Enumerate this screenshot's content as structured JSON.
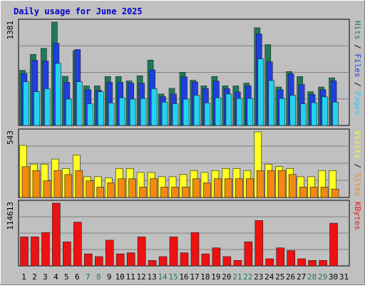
{
  "title": "Daily usage for June 2025",
  "colors": {
    "hits": "#1f7a5a",
    "files": "#1f3fe0",
    "pages": "#22d3ee",
    "visits": "#ffff22",
    "sites": "#f08a10",
    "kbytes": "#ee1111",
    "background": "#c0c0c0",
    "title": "#0000cc"
  },
  "chart_data": [
    {
      "type": "bar",
      "title": "Daily usage for June 2025",
      "categories": [
        "1",
        "2",
        "3",
        "4",
        "5",
        "6",
        "7",
        "8",
        "9",
        "10",
        "11",
        "12",
        "13",
        "14",
        "15",
        "16",
        "17",
        "18",
        "19",
        "20",
        "21",
        "22",
        "23",
        "24",
        "25",
        "26",
        "27",
        "28",
        "29",
        "30",
        "31"
      ],
      "weekend_days": [
        "7",
        "8",
        "14",
        "15",
        "21",
        "22",
        "28",
        "29"
      ],
      "ylabel_max": "1381",
      "ylim": [
        0,
        1381
      ],
      "legend": [
        "Pages",
        "Files",
        "Hits"
      ],
      "legend_placement": "right",
      "series": [
        {
          "name": "Hits",
          "values": [
            736,
            950,
            1030,
            1381,
            656,
            1000,
            529,
            529,
            654,
            654,
            595,
            663,
            874,
            420,
            497,
            710,
            603,
            529,
            654,
            529,
            529,
            565,
            1305,
            1080,
            514,
            720,
            654,
            451,
            514,
            637,
            0
          ]
        },
        {
          "name": "Files",
          "values": [
            694,
            870,
            862,
            1100,
            576,
            1015,
            478,
            469,
            576,
            576,
            566,
            566,
            743,
            383,
            420,
            650,
            579,
            491,
            593,
            491,
            449,
            529,
            1222,
            851,
            478,
            690,
            546,
            414,
            478,
            596,
            0
          ]
        },
        {
          "name": "Pages",
          "values": [
            584,
            451,
            491,
            830,
            352,
            584,
            290,
            451,
            301,
            369,
            352,
            361,
            491,
            312,
            290,
            352,
            404,
            301,
            369,
            420,
            361,
            361,
            890,
            601,
            361,
            404,
            290,
            304,
            382,
            312,
            0
          ]
        }
      ]
    },
    {
      "type": "bar",
      "ylabel_max": "543",
      "ylim": [
        0,
        543
      ],
      "legend": [
        "Sites",
        "Visits"
      ],
      "legend_placement": "right",
      "series": [
        {
          "name": "Visits",
          "values": [
            431,
            276,
            276,
            318,
            240,
            352,
            172,
            172,
            163,
            240,
            240,
            207,
            207,
            172,
            172,
            190,
            223,
            207,
            223,
            240,
            240,
            223,
            543,
            276,
            255,
            240,
            172,
            172,
            223,
            223,
            0
          ]
        },
        {
          "name": "Sites",
          "values": [
            255,
            223,
            138,
            223,
            190,
            223,
            138,
            86,
            121,
            155,
            155,
            86,
            155,
            86,
            86,
            86,
            155,
            121,
            155,
            155,
            155,
            155,
            223,
            223,
            223,
            190,
            86,
            86,
            86,
            70,
            0
          ]
        }
      ]
    },
    {
      "type": "bar",
      "ylabel_max": "114613",
      "ylim": [
        0,
        114613
      ],
      "legend": [
        "KBytes"
      ],
      "legend_placement": "right",
      "series": [
        {
          "name": "KBytes",
          "values": [
            53000,
            53000,
            61000,
            114613,
            44000,
            80000,
            22000,
            17000,
            47000,
            22000,
            24000,
            53000,
            10000,
            17000,
            53000,
            24000,
            61000,
            22000,
            33000,
            17000,
            10000,
            44000,
            83000,
            13000,
            33000,
            28000,
            13000,
            10000,
            10000,
            78000,
            0
          ]
        }
      ]
    }
  ]
}
